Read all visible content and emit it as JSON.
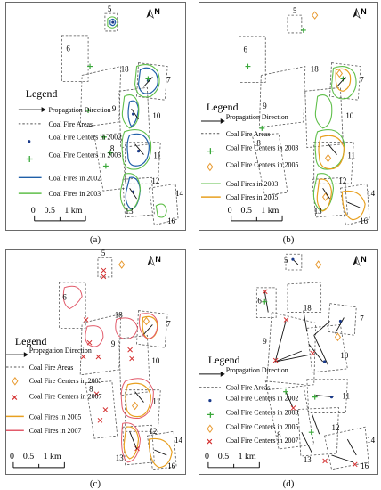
{
  "captions": [
    "(a)",
    "(b)",
    "(c)",
    "(d)"
  ],
  "legend_title": "Legend",
  "panels": {
    "a": {
      "numbers": [
        "5",
        "6",
        "18",
        "7",
        "9",
        "10",
        "8",
        "11",
        "12",
        "13",
        "14",
        "16"
      ],
      "legend": [
        "Propagation Direction",
        "Coal Fire Areas",
        "Coal Fire Centers in 2002",
        "Coal Fire Centers in 2003",
        "Coal Fires in 2002",
        "Coal Fires in 2003"
      ]
    },
    "b": {
      "numbers": [
        "5",
        "6",
        "18",
        "7",
        "9",
        "10",
        "8",
        "11",
        "12",
        "13",
        "14",
        "16"
      ],
      "legend": [
        "Propagation Direction",
        "Coal Fire Areas",
        "Coal Fire Centers in 2003",
        "Coal Fire Centers in 2005",
        "Coal Fires in 2003",
        "Coal Fires in 2005"
      ]
    },
    "c": {
      "numbers": [
        "5",
        "6",
        "18",
        "7",
        "9",
        "10",
        "8",
        "11",
        "12",
        "13",
        "14",
        "16"
      ],
      "legend": [
        "Propagation Direction",
        "Coal Fire Areas",
        "Coal Fire Centers in 2005",
        "Coal Fire Centers in 2007",
        "Coal Fires in 2005",
        "Coal Fires in 2007"
      ]
    },
    "d": {
      "numbers": [
        "5",
        "6",
        "18",
        "7",
        "9",
        "10",
        "8",
        "11",
        "12",
        "13",
        "14",
        "16"
      ],
      "legend": [
        "Propagation Direction",
        "Coal Fire Areas",
        "Coal Fire Centers in 2002",
        "Coal Fire Centers in 2003",
        "Coal Fire Centers in 2005",
        "Coal Fire Centers in 2007"
      ]
    }
  },
  "scale": {
    "t0": "0",
    "t1": "0.5",
    "t2": "1 km"
  },
  "north": "N",
  "colors": {
    "fire_2002": "#1f5fa8",
    "fire_2003": "#5fbf4a",
    "fire_2005": "#e8a020",
    "fire_2007": "#e25a6a",
    "center_2002": "#1a3a8a",
    "center_2003": "#3aa83a",
    "center_2005": "#e89a30",
    "center_2007": "#d43030",
    "areas": "#555555"
  }
}
